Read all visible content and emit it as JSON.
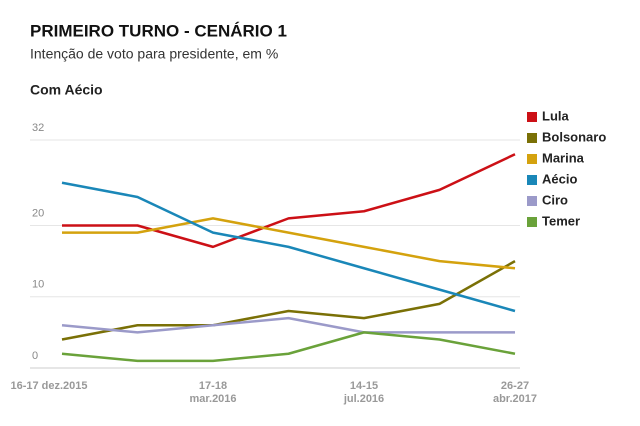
{
  "chart_data": {
    "type": "line",
    "title": "PRIMEIRO TURNO - CENÁRIO 1",
    "subtitle": "Intenção de voto para presidente, em %",
    "section": "Com Aécio",
    "categories": [
      "16-17 dez.2015",
      null,
      "17-18 mar.2016",
      null,
      "14-15 jul.2016",
      null,
      "26-27 abr.2017"
    ],
    "series": [
      {
        "name": "Lula",
        "color": "#cc1016",
        "values": [
          20,
          20,
          17,
          21,
          22,
          25,
          30
        ]
      },
      {
        "name": "Bolsonaro",
        "color": "#7a7006",
        "values": [
          4,
          6,
          6,
          8,
          7,
          9,
          15
        ]
      },
      {
        "name": "Marina",
        "color": "#d4a20e",
        "values": [
          19,
          19,
          21,
          19,
          17,
          15,
          14
        ]
      },
      {
        "name": "Aécio",
        "color": "#1a87b8",
        "values": [
          26,
          24,
          19,
          17,
          14,
          11,
          8
        ]
      },
      {
        "name": "Ciro",
        "color": "#9b9ac9",
        "values": [
          6,
          5,
          6,
          7,
          5,
          5,
          5
        ]
      },
      {
        "name": "Temer",
        "color": "#6aa23a",
        "values": [
          2,
          1,
          1,
          2,
          5,
          4,
          2
        ]
      }
    ],
    "ylim": [
      0,
      32
    ],
    "yticks": [
      0,
      10,
      20,
      32
    ],
    "grid": true
  }
}
